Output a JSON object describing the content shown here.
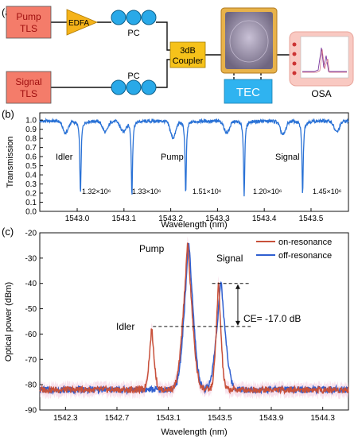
{
  "panel_a": {
    "label": "(a)",
    "pump_box": [
      "Pump",
      "TLS"
    ],
    "signal_box": [
      "Signal",
      "TLS"
    ],
    "edfa": "EDFA",
    "pc_top": "PC",
    "pc_bottom": "PC",
    "coupler": [
      "3dB",
      "Coupler"
    ],
    "tec": "TEC",
    "osa": "OSA",
    "colors": {
      "laser_box": "#f47c6a",
      "edfa": "#f5b31a",
      "pc_ring": "#29a9e8",
      "coupler": "#f6c21a",
      "tec": "#2fb3f0",
      "osa_bg": "#f9c9c2",
      "chip_frame": "#e8b24a"
    }
  },
  "panel_b": {
    "label": "(b)",
    "annotations": {
      "idler": "Idler",
      "pump": "Pump",
      "signal": "Signal"
    },
    "q_labels": [
      "1.32×10⁶",
      "1.33×10⁶",
      "1.51×10⁶",
      "1.20×10⁶",
      "1.45×10⁶"
    ],
    "color": "#2a72d6"
  },
  "panel_c": {
    "label": "(c)",
    "annotations": {
      "pump": "Pump",
      "signal": "Signal",
      "idler": "Idler",
      "ce": "CE= -17.0 dB"
    },
    "colors": {
      "on": "#c8513a",
      "off": "#2f5fd0",
      "shade": "#f3c9dd"
    }
  },
  "chart_data": [
    {
      "type": "line",
      "xlabel": "Wavelength (nm)",
      "ylabel": "Transmission",
      "xlim": [
        1542.92,
        1543.58
      ],
      "ylim": [
        0.0,
        1.08
      ],
      "x_ticks": [
        1543.0,
        1543.1,
        1543.2,
        1543.3,
        1543.4,
        1543.5
      ],
      "y_ticks": [
        0.0,
        0.1,
        0.2,
        0.3,
        0.4,
        0.5,
        0.6,
        0.7,
        0.8,
        0.9,
        1.0
      ],
      "baseline": 0.99,
      "dips_deep": [
        {
          "x": 1543.007,
          "min": 0.18
        },
        {
          "x": 1543.117,
          "min": 0.17
        },
        {
          "x": 1543.232,
          "min": 0.18
        },
        {
          "x": 1543.357,
          "min": 0.18
        },
        {
          "x": 1543.482,
          "min": 0.18
        }
      ],
      "dips_shallow": [
        {
          "x": 1542.975,
          "min": 0.86
        },
        {
          "x": 1543.06,
          "min": 0.87
        },
        {
          "x": 1543.098,
          "min": 0.88
        },
        {
          "x": 1543.205,
          "min": 0.81
        },
        {
          "x": 1543.32,
          "min": 0.86
        },
        {
          "x": 1543.44,
          "min": 0.84
        },
        {
          "x": 1543.555,
          "min": 0.87
        }
      ]
    },
    {
      "type": "line",
      "xlabel": "Wavelength (nm)",
      "ylabel": "Optical power (dBm)",
      "xlim": [
        1542.1,
        1544.5
      ],
      "ylim": [
        -90,
        -20
      ],
      "x_ticks": [
        1542.3,
        1542.7,
        1543.1,
        1543.5,
        1543.9,
        1544.3
      ],
      "y_ticks": [
        -90,
        -80,
        -70,
        -60,
        -50,
        -40,
        -30,
        -20
      ],
      "series": [
        {
          "name": "on-resonance",
          "floor": -82,
          "peaks": [
            {
              "x": 1542.97,
              "peak": -58
            },
            {
              "x": 1543.25,
              "peak": -25
            },
            {
              "x": 1543.49,
              "peak": -40
            }
          ]
        },
        {
          "name": "off-resonance",
          "floor": -82,
          "peaks": [
            {
              "x": 1543.25,
              "peak": -24
            },
            {
              "x": 1543.5,
              "peak": -40
            }
          ]
        }
      ],
      "ce_markers": {
        "upper": -40,
        "lower": -57
      }
    }
  ]
}
